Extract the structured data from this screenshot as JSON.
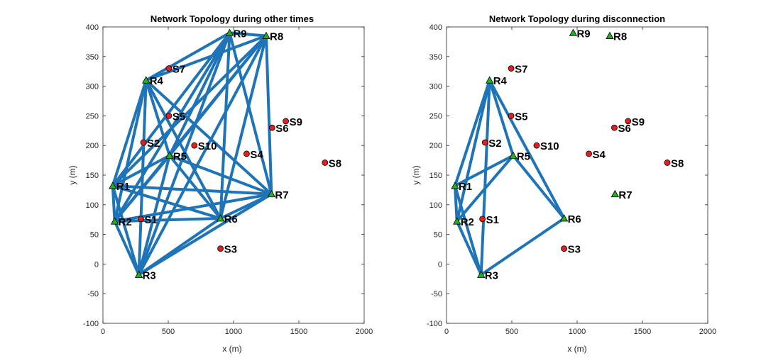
{
  "colors": {
    "link": "#1f74b8",
    "router_fill": "#22b022",
    "sensor_fill": "#e02020",
    "marker_edge": "#000000",
    "axis": "#262626"
  },
  "chart_data": [
    {
      "type": "network-scatter",
      "title": "Network Topology during other times",
      "xlabel": "x (m)",
      "ylabel": "y (m)",
      "xlim": [
        0,
        2000
      ],
      "ylim": [
        -100,
        400
      ],
      "xticks": [
        0,
        500,
        1000,
        1500,
        2000
      ],
      "yticks": [
        -100,
        -50,
        0,
        50,
        100,
        150,
        200,
        250,
        300,
        350,
        400
      ],
      "xtick_labels": [
        "0",
        "500",
        "1000",
        "1500",
        "2000"
      ],
      "ytick_labels": [
        "-100",
        "-50",
        "0",
        "50",
        "100",
        "150",
        "200",
        "250",
        "300",
        "350",
        "400"
      ],
      "grid": false,
      "routers": [
        {
          "label": "R1",
          "x": 75,
          "y": 132
        },
        {
          "label": "R2",
          "x": 90,
          "y": 72
        },
        {
          "label": "R3",
          "x": 275,
          "y": -18
        },
        {
          "label": "R4",
          "x": 330,
          "y": 310
        },
        {
          "label": "R5",
          "x": 510,
          "y": 183
        },
        {
          "label": "R6",
          "x": 900,
          "y": 77
        },
        {
          "label": "R7",
          "x": 1290,
          "y": 118
        },
        {
          "label": "R8",
          "x": 1250,
          "y": 385
        },
        {
          "label": "R9",
          "x": 970,
          "y": 390
        }
      ],
      "sensors": [
        {
          "label": "S1",
          "x": 290,
          "y": 76
        },
        {
          "label": "S2",
          "x": 310,
          "y": 205
        },
        {
          "label": "S3",
          "x": 900,
          "y": 26
        },
        {
          "label": "S4",
          "x": 1100,
          "y": 186
        },
        {
          "label": "S5",
          "x": 505,
          "y": 250
        },
        {
          "label": "S6",
          "x": 1295,
          "y": 230
        },
        {
          "label": "S7",
          "x": 505,
          "y": 330
        },
        {
          "label": "S8",
          "x": 1700,
          "y": 171
        },
        {
          "label": "S9",
          "x": 1400,
          "y": 241
        },
        {
          "label": "S10",
          "x": 700,
          "y": 200
        }
      ],
      "links": [
        [
          "R1",
          "R2"
        ],
        [
          "R1",
          "R3"
        ],
        [
          "R1",
          "R4"
        ],
        [
          "R1",
          "R5"
        ],
        [
          "R1",
          "R6"
        ],
        [
          "R1",
          "R7"
        ],
        [
          "R1",
          "R8"
        ],
        [
          "R1",
          "R9"
        ],
        [
          "R2",
          "R3"
        ],
        [
          "R2",
          "R4"
        ],
        [
          "R2",
          "R5"
        ],
        [
          "R2",
          "R6"
        ],
        [
          "R2",
          "R7"
        ],
        [
          "R2",
          "R8"
        ],
        [
          "R2",
          "R9"
        ],
        [
          "R3",
          "R4"
        ],
        [
          "R3",
          "R5"
        ],
        [
          "R3",
          "R6"
        ],
        [
          "R3",
          "R7"
        ],
        [
          "R3",
          "R8"
        ],
        [
          "R3",
          "R9"
        ],
        [
          "R4",
          "R5"
        ],
        [
          "R4",
          "R6"
        ],
        [
          "R4",
          "R7"
        ],
        [
          "R4",
          "R8"
        ],
        [
          "R4",
          "R9"
        ],
        [
          "R5",
          "R6"
        ],
        [
          "R5",
          "R7"
        ],
        [
          "R5",
          "R8"
        ],
        [
          "R5",
          "R9"
        ],
        [
          "R6",
          "R7"
        ],
        [
          "R6",
          "R8"
        ],
        [
          "R6",
          "R9"
        ],
        [
          "R7",
          "R8"
        ],
        [
          "R7",
          "R9"
        ],
        [
          "R8",
          "R9"
        ]
      ]
    },
    {
      "type": "network-scatter",
      "title": "Network Topology during disconnection",
      "xlabel": "x (m)",
      "ylabel": "y (m)",
      "xlim": [
        0,
        2000
      ],
      "ylim": [
        -100,
        400
      ],
      "xticks": [
        0,
        500,
        1000,
        1500,
        2000
      ],
      "yticks": [
        -100,
        -50,
        0,
        50,
        100,
        150,
        200,
        250,
        300,
        350,
        400
      ],
      "xtick_labels": [
        "0",
        "500",
        "1000",
        "1500",
        "2000"
      ],
      "ytick_labels": [
        "-100",
        "-50",
        "0",
        "50",
        "100",
        "150",
        "200",
        "250",
        "300",
        "350",
        "400"
      ],
      "grid": false,
      "routers": [
        {
          "label": "R1",
          "x": 65,
          "y": 132
        },
        {
          "label": "R2",
          "x": 80,
          "y": 72
        },
        {
          "label": "R3",
          "x": 265,
          "y": -18
        },
        {
          "label": "R4",
          "x": 330,
          "y": 310
        },
        {
          "label": "R5",
          "x": 510,
          "y": 183
        },
        {
          "label": "R6",
          "x": 900,
          "y": 77
        },
        {
          "label": "R7",
          "x": 1290,
          "y": 118
        },
        {
          "label": "R8",
          "x": 1250,
          "y": 385
        },
        {
          "label": "R9",
          "x": 970,
          "y": 390
        }
      ],
      "sensors": [
        {
          "label": "S1",
          "x": 275,
          "y": 76
        },
        {
          "label": "S2",
          "x": 295,
          "y": 205
        },
        {
          "label": "S3",
          "x": 900,
          "y": 26
        },
        {
          "label": "S4",
          "x": 1090,
          "y": 186
        },
        {
          "label": "S5",
          "x": 495,
          "y": 250
        },
        {
          "label": "S6",
          "x": 1285,
          "y": 230
        },
        {
          "label": "S7",
          "x": 495,
          "y": 330
        },
        {
          "label": "S8",
          "x": 1690,
          "y": 171
        },
        {
          "label": "S9",
          "x": 1390,
          "y": 241
        },
        {
          "label": "S10",
          "x": 690,
          "y": 200
        }
      ],
      "links": [
        [
          "R1",
          "R2"
        ],
        [
          "R1",
          "R3"
        ],
        [
          "R1",
          "R4"
        ],
        [
          "R1",
          "R5"
        ],
        [
          "R2",
          "R3"
        ],
        [
          "R2",
          "R4"
        ],
        [
          "R2",
          "R5"
        ],
        [
          "R3",
          "R4"
        ],
        [
          "R3",
          "R6"
        ],
        [
          "R4",
          "R5"
        ],
        [
          "R4",
          "R6"
        ],
        [
          "R5",
          "R6"
        ]
      ]
    }
  ]
}
